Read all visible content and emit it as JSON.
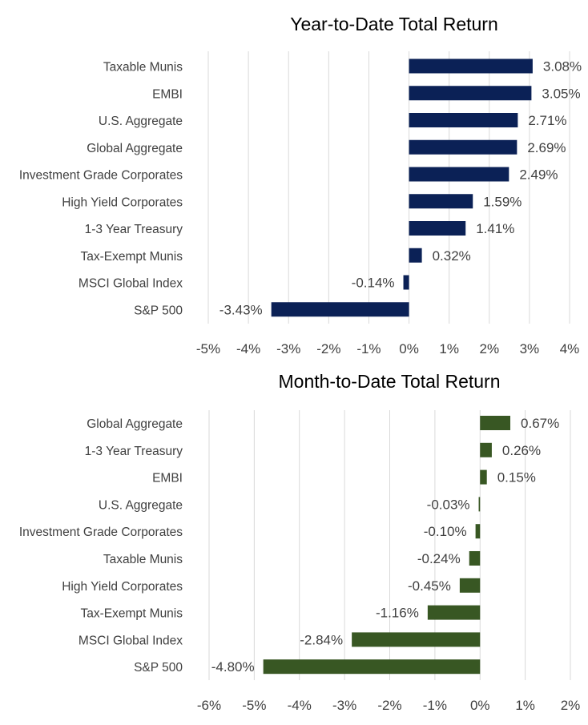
{
  "chart_data": [
    {
      "type": "bar",
      "orientation": "horizontal",
      "title": "Year-to-Date Total Return",
      "categories": [
        "Taxable Munis",
        "EMBI",
        "U.S. Aggregate",
        "Global Aggregate",
        "Investment Grade Corporates",
        "High Yield Corporates",
        "1-3 Year Treasury",
        "Tax-Exempt Munis",
        "MSCI Global Index",
        "S&P 500"
      ],
      "values": [
        3.08,
        3.05,
        2.71,
        2.69,
        2.49,
        1.59,
        1.41,
        0.32,
        -0.14,
        -3.43
      ],
      "value_labels": [
        "3.08%",
        "3.05%",
        "2.71%",
        "2.69%",
        "2.49%",
        "1.59%",
        "1.41%",
        "0.32%",
        "-0.14%",
        "-3.43%"
      ],
      "xlim": [
        -5,
        4
      ],
      "xticks": [
        -5,
        -4,
        -3,
        -2,
        -1,
        0,
        1,
        2,
        3,
        4
      ],
      "xtick_labels": [
        "-5%",
        "-4%",
        "-3%",
        "-2%",
        "-1%",
        "0%",
        "1%",
        "2%",
        "3%",
        "4%"
      ],
      "bar_color": "#0b2156",
      "grid": true
    },
    {
      "type": "bar",
      "orientation": "horizontal",
      "title": "Month-to-Date Total Return",
      "categories": [
        "Global Aggregate",
        "1-3 Year Treasury",
        "EMBI",
        "U.S. Aggregate",
        "Investment Grade Corporates",
        "Taxable Munis",
        "High Yield Corporates",
        "Tax-Exempt Munis",
        "MSCI Global Index",
        "S&P 500"
      ],
      "values": [
        0.67,
        0.26,
        0.15,
        -0.03,
        -0.1,
        -0.24,
        -0.45,
        -1.16,
        -2.84,
        -4.8
      ],
      "value_labels": [
        "0.67%",
        "0.26%",
        "0.15%",
        "-0.03%",
        "-0.10%",
        "-0.24%",
        "-0.45%",
        "-1.16%",
        "-2.84%",
        "-4.80%"
      ],
      "xlim": [
        -6,
        2
      ],
      "xticks": [
        -6,
        -5,
        -4,
        -3,
        -2,
        -1,
        0,
        1,
        2
      ],
      "xtick_labels": [
        "-6%",
        "-5%",
        "-4%",
        "-3%",
        "-2%",
        "-1%",
        "0%",
        "1%",
        "2%"
      ],
      "bar_color": "#385723",
      "grid": true
    }
  ]
}
